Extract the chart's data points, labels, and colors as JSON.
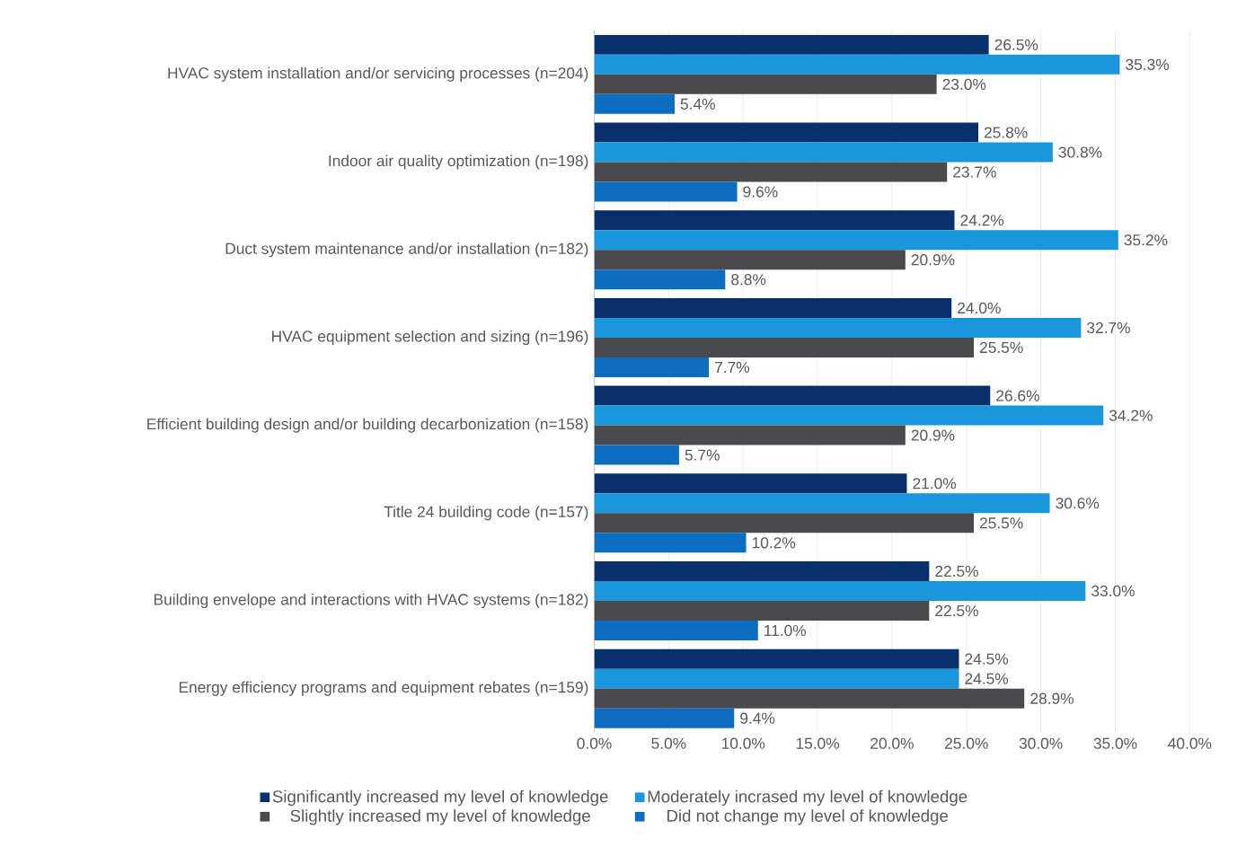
{
  "chart_data": {
    "type": "bar",
    "orientation": "horizontal",
    "categories": [
      "HVAC system installation and/or servicing processes (n=204)",
      "Indoor air quality optimization (n=198)",
      "Duct system maintenance and/or installation (n=182)",
      "HVAC equipment selection and sizing (n=196)",
      "Efficient building design and/or building decarbonization (n=158)",
      "Title 24 building code (n=157)",
      "Building envelope and interactions with HVAC systems (n=182)",
      "Energy efficiency programs and equipment rebates (n=159)"
    ],
    "series": [
      {
        "name": "Significantly increased my level of knowledge",
        "color": "#08306b",
        "values": [
          26.5,
          25.8,
          24.2,
          24.0,
          26.6,
          21.0,
          22.5,
          24.5
        ],
        "value_labels": [
          "26.5%",
          "25.8%",
          "24.2%",
          "24.0%",
          "26.6%",
          "21.0%",
          "22.5%",
          "24.5%"
        ]
      },
      {
        "name": "Moderately incrased my level of knowledge",
        "color": "#1a96dc",
        "values": [
          35.3,
          30.8,
          35.2,
          32.7,
          34.2,
          30.6,
          33.0,
          24.5
        ],
        "value_labels": [
          "35.3%",
          "30.8%",
          "35.2%",
          "32.7%",
          "34.2%",
          "30.6%",
          "33.0%",
          "24.5%"
        ]
      },
      {
        "name": "Slightly increased my level of knowledge",
        "color": "#4a494b",
        "values": [
          23.0,
          23.7,
          20.9,
          25.5,
          20.9,
          25.5,
          22.5,
          28.9
        ],
        "value_labels": [
          "23.0%",
          "23.7%",
          "20.9%",
          "25.5%",
          "20.9%",
          "25.5%",
          "22.5%",
          "28.9%"
        ]
      },
      {
        "name": "Did not change my level of knowledge",
        "color": "#0d6ebf",
        "values": [
          5.4,
          9.6,
          8.8,
          7.7,
          5.7,
          10.2,
          11.0,
          9.4
        ],
        "value_labels": [
          "5.4%",
          "9.6%",
          "8.8%",
          "7.7%",
          "5.7%",
          "10.2%",
          "11.0%",
          "9.4%"
        ]
      }
    ],
    "xlim": [
      0,
      40
    ],
    "xticks": [
      {
        "value": 0,
        "label": "0.0%"
      },
      {
        "value": 5,
        "label": "5.0%"
      },
      {
        "value": 10,
        "label": "10.0%"
      },
      {
        "value": 15,
        "label": "15.0%"
      },
      {
        "value": 20,
        "label": "20.0%"
      },
      {
        "value": 25,
        "label": "25.0%"
      },
      {
        "value": 30,
        "label": "30.0%"
      },
      {
        "value": 35,
        "label": "35.0%"
      },
      {
        "value": 40,
        "label": "40.0%"
      }
    ],
    "grid": "x",
    "legend": "bottom"
  }
}
